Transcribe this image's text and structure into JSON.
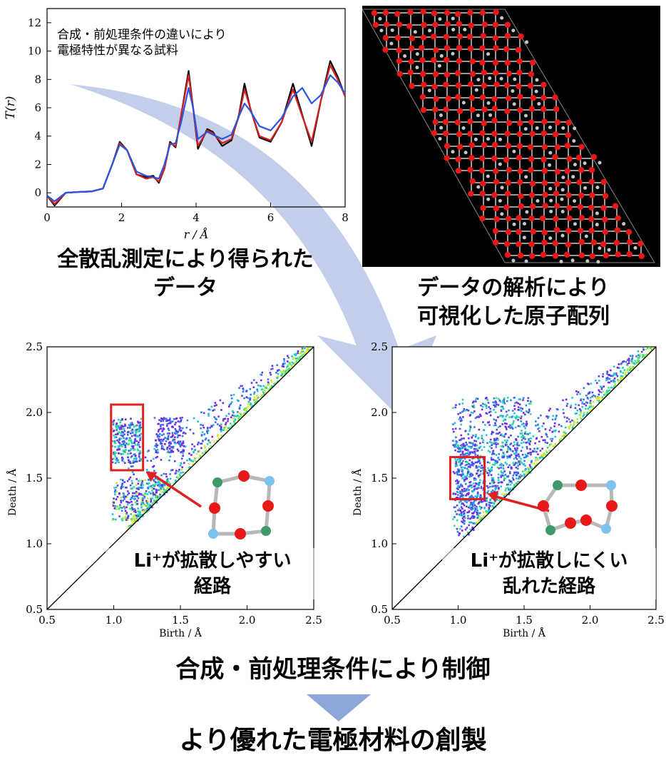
{
  "charts": {
    "pdf": {
      "type": "line",
      "xlabel": "r / Å",
      "ylabel": "T(r)",
      "xlim": [
        0,
        8
      ],
      "ylim": [
        -1,
        13
      ],
      "x_ticks": [
        "0",
        "2",
        "4",
        "6",
        "8"
      ],
      "y_ticks": [
        "0",
        "2",
        "4",
        "6",
        "8",
        "10",
        "12"
      ],
      "note_lines": [
        "合成・前処理条件の違いにより",
        "電極特性が異なる試料"
      ],
      "series": [
        {
          "color": "#000000",
          "points": [
            [
              0,
              -0.2
            ],
            [
              0.2,
              -0.9
            ],
            [
              0.5,
              0.0
            ],
            [
              0.8,
              0.05
            ],
            [
              1.2,
              0.1
            ],
            [
              1.5,
              0.3
            ],
            [
              1.75,
              2.0
            ],
            [
              1.95,
              3.6
            ],
            [
              2.15,
              3.0
            ],
            [
              2.4,
              1.3
            ],
            [
              2.65,
              1.1
            ],
            [
              2.85,
              1.2
            ],
            [
              3.0,
              0.7
            ],
            [
              3.15,
              1.7
            ],
            [
              3.3,
              3.6
            ],
            [
              3.45,
              3.2
            ],
            [
              3.6,
              5.5
            ],
            [
              3.8,
              8.6
            ],
            [
              3.92,
              6.0
            ],
            [
              4.05,
              3.1
            ],
            [
              4.3,
              4.5
            ],
            [
              4.45,
              4.3
            ],
            [
              4.7,
              3.3
            ],
            [
              4.95,
              3.7
            ],
            [
              5.15,
              5.5
            ],
            [
              5.3,
              7.7
            ],
            [
              5.45,
              6.0
            ],
            [
              5.7,
              3.9
            ],
            [
              6.0,
              3.6
            ],
            [
              6.3,
              5.0
            ],
            [
              6.6,
              7.7
            ],
            [
              6.85,
              5.5
            ],
            [
              7.1,
              3.3
            ],
            [
              7.35,
              6.5
            ],
            [
              7.6,
              9.3
            ],
            [
              7.8,
              8.2
            ],
            [
              8.0,
              6.8
            ]
          ]
        },
        {
          "color": "#d42020",
          "points": [
            [
              0,
              -0.2
            ],
            [
              0.2,
              -0.8
            ],
            [
              0.5,
              0.0
            ],
            [
              0.8,
              0.05
            ],
            [
              1.2,
              0.1
            ],
            [
              1.5,
              0.3
            ],
            [
              1.75,
              2.0
            ],
            [
              1.95,
              3.5
            ],
            [
              2.15,
              3.0
            ],
            [
              2.4,
              1.3
            ],
            [
              2.65,
              1.0
            ],
            [
              2.85,
              1.1
            ],
            [
              3.0,
              0.8
            ],
            [
              3.15,
              1.7
            ],
            [
              3.3,
              3.5
            ],
            [
              3.45,
              3.3
            ],
            [
              3.6,
              5.5
            ],
            [
              3.8,
              8.3
            ],
            [
              3.92,
              6.0
            ],
            [
              4.05,
              3.3
            ],
            [
              4.3,
              4.4
            ],
            [
              4.45,
              4.2
            ],
            [
              4.7,
              3.5
            ],
            [
              4.95,
              3.8
            ],
            [
              5.15,
              5.4
            ],
            [
              5.3,
              7.3
            ],
            [
              5.45,
              6.0
            ],
            [
              5.7,
              4.0
            ],
            [
              6.0,
              3.7
            ],
            [
              6.3,
              5.0
            ],
            [
              6.6,
              7.3
            ],
            [
              6.85,
              5.4
            ],
            [
              7.1,
              3.6
            ],
            [
              7.35,
              6.5
            ],
            [
              7.6,
              9.0
            ],
            [
              7.8,
              8.0
            ],
            [
              8.0,
              6.8
            ]
          ]
        },
        {
          "color": "#2a55e0",
          "points": [
            [
              0,
              -0.2
            ],
            [
              0.2,
              -0.6
            ],
            [
              0.5,
              0.0
            ],
            [
              0.8,
              0.05
            ],
            [
              1.2,
              0.1
            ],
            [
              1.5,
              0.3
            ],
            [
              1.75,
              2.0
            ],
            [
              1.95,
              3.4
            ],
            [
              2.15,
              3.0
            ],
            [
              2.4,
              1.5
            ],
            [
              2.65,
              1.2
            ],
            [
              2.85,
              1.1
            ],
            [
              3.0,
              1.0
            ],
            [
              3.15,
              2.0
            ],
            [
              3.3,
              3.4
            ],
            [
              3.45,
              3.5
            ],
            [
              3.6,
              5.0
            ],
            [
              3.8,
              7.4
            ],
            [
              3.92,
              6.0
            ],
            [
              4.05,
              3.8
            ],
            [
              4.3,
              4.3
            ],
            [
              4.45,
              4.1
            ],
            [
              4.7,
              3.8
            ],
            [
              4.95,
              4.1
            ],
            [
              5.15,
              5.4
            ],
            [
              5.3,
              6.3
            ],
            [
              5.45,
              5.8
            ],
            [
              5.7,
              4.7
            ],
            [
              6.0,
              4.4
            ],
            [
              6.3,
              5.3
            ],
            [
              6.6,
              6.8
            ],
            [
              6.85,
              7.4
            ],
            [
              7.1,
              6.3
            ],
            [
              7.35,
              6.9
            ],
            [
              7.6,
              8.3
            ],
            [
              7.8,
              7.8
            ],
            [
              8.0,
              7.0
            ]
          ]
        }
      ]
    },
    "persistence": [
      {
        "type": "heatmap",
        "xlabel": "Birth / Å",
        "ylabel": "Death / Å",
        "xlim": [
          0.5,
          2.5
        ],
        "ylim": [
          0.5,
          2.5
        ],
        "ticks": [
          "0.5",
          "1.0",
          "1.5",
          "2.0",
          "2.5"
        ],
        "highlight_region": {
          "birth": [
            0.98,
            1.22
          ],
          "death": [
            1.56,
            2.06
          ]
        },
        "clusters": [
          {
            "label": "ring-cluster",
            "birth": [
              0.98,
              1.22
            ],
            "death": [
              1.6,
              1.95
            ]
          },
          {
            "label": "upper-cluster",
            "birth": [
              1.3,
              1.55
            ],
            "death": [
              1.7,
              1.95
            ]
          },
          {
            "label": "lower-cluster",
            "birth": [
              1.0,
              1.4
            ],
            "death": [
              1.18,
              1.5
            ]
          },
          {
            "label": "diagonal-band",
            "birth": [
              1.1,
              2.5
            ],
            "death": "near diagonal"
          }
        ],
        "annotation": [
          "Li⁺が拡散しやすい",
          "経路"
        ]
      },
      {
        "type": "heatmap",
        "xlabel": "Birth / Å",
        "ylabel": "Death / Å",
        "xlim": [
          0.5,
          2.5
        ],
        "ylim": [
          0.5,
          2.5
        ],
        "ticks": [
          "0.5",
          "1.0",
          "1.5",
          "2.0",
          "2.5"
        ],
        "highlight_region": {
          "birth": [
            0.94,
            1.2
          ],
          "death": [
            1.34,
            1.66
          ]
        },
        "clusters": [
          {
            "label": "broad-cluster",
            "birth": [
              0.95,
              1.6
            ],
            "death": [
              1.05,
              2.1
            ]
          },
          {
            "label": "diagonal-band",
            "birth": [
              1.1,
              2.5
            ],
            "death": "near diagonal"
          }
        ],
        "annotation": [
          "Li⁺が拡散しにくい",
          "乱れた経路"
        ]
      }
    ]
  },
  "text": {
    "pdf_caption": [
      "全散乱測定により得られた",
      "データ"
    ],
    "structure_caption": [
      "データの解析により",
      "可視化した原子配列"
    ],
    "control_caption": "合成・前処理条件により制御",
    "final_caption": "より優れた電極材料の創製"
  },
  "colors": {
    "arrow": "#b7c6e6",
    "down_arrow": "#8fa6d8",
    "highlight_box": "#e02020",
    "atom_red": "#e81818",
    "atom_blue": "#7cc4ee",
    "atom_green": "#3e9a6a",
    "bond": "#b8b8b8"
  }
}
